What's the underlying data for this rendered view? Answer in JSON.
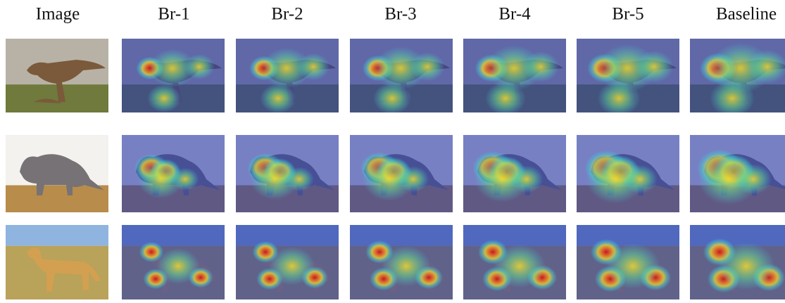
{
  "columns": [
    "Image",
    "Br-1",
    "Br-2",
    "Br-3",
    "Br-4",
    "Br-5",
    "Baseline"
  ]
}
